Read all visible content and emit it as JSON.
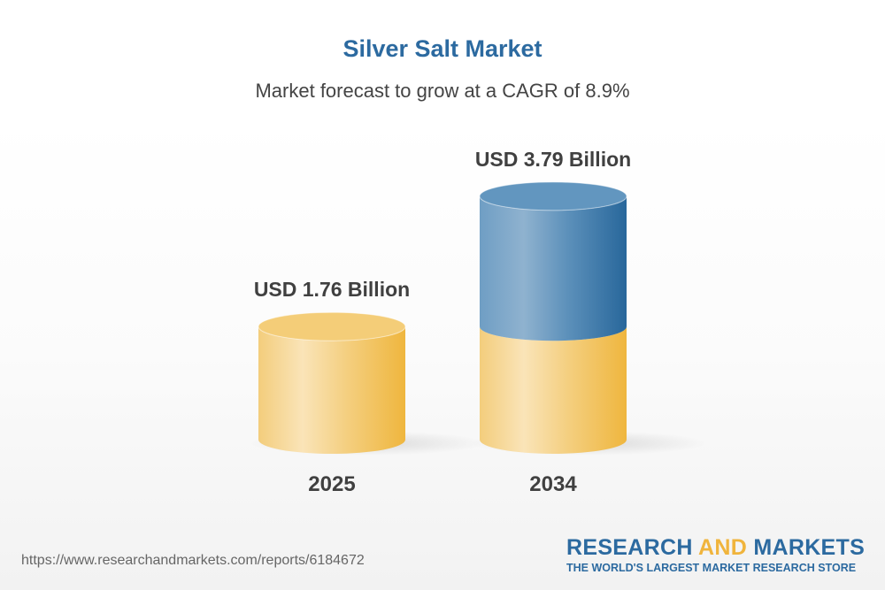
{
  "title": "Silver Salt Market",
  "subtitle": "Market forecast to grow at a CAGR of 8.9%",
  "chart_data": {
    "type": "bar",
    "style": "3d-cylinder",
    "categories": [
      "2025",
      "2034"
    ],
    "values": [
      1.76,
      3.79
    ],
    "unit": "USD Billion",
    "data_labels": [
      "USD 1.76 Billion",
      "USD 3.79 Billion"
    ],
    "colors": {
      "base": "#f0b43c",
      "growth": "#2c6aa0"
    },
    "grid": false
  },
  "footer": {
    "url": "https://www.researchandmarkets.com/reports/6184672",
    "logo": {
      "part1": "RESEARCH",
      "part2": "AND",
      "part3": "MARKETS",
      "tagline": "THE WORLD'S LARGEST MARKET RESEARCH STORE"
    }
  }
}
